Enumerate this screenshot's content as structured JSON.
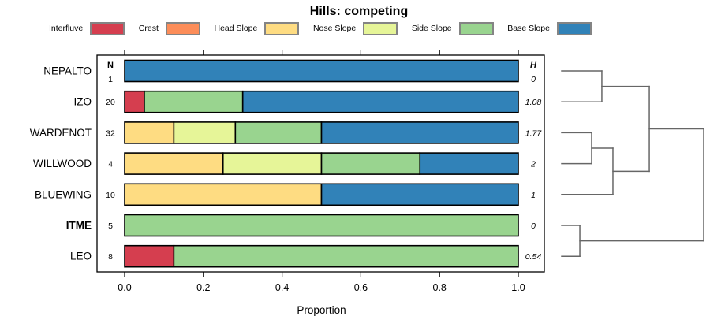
{
  "title": "Hills: competing",
  "legend": {
    "items": [
      {
        "label": "Interfluve",
        "color": "#d53e4f"
      },
      {
        "label": "Crest",
        "color": "#fc8d59"
      },
      {
        "label": "Head Slope",
        "color": "#fedc82"
      },
      {
        "label": "Nose Slope",
        "color": "#e6f598"
      },
      {
        "label": "Side Slope",
        "color": "#99d48f"
      },
      {
        "label": "Base Slope",
        "color": "#3182b8"
      }
    ]
  },
  "chart_data": {
    "type": "bar",
    "orientation": "horizontal-stacked",
    "title": "Hills: competing",
    "xlabel": "Proportion",
    "xlim": [
      0,
      1
    ],
    "xticks": [
      0,
      0.2,
      0.4,
      0.6,
      0.8,
      1.0
    ],
    "xtick_labels": [
      "0.0",
      "0.2",
      "0.4",
      "0.6",
      "0.8",
      "1.0"
    ],
    "n_header": "N",
    "h_header": "H",
    "categories": [
      "Interfluve",
      "Crest",
      "Head Slope",
      "Nose Slope",
      "Side Slope",
      "Base Slope"
    ],
    "rows": [
      {
        "label": "NEPALTO",
        "bold": false,
        "n": "1",
        "h": "0",
        "segments": [
          {
            "category": "Base Slope",
            "value": 1.0
          }
        ]
      },
      {
        "label": "IZO",
        "bold": false,
        "n": "20",
        "h": "1.08",
        "segments": [
          {
            "category": "Interfluve",
            "value": 0.05
          },
          {
            "category": "Side Slope",
            "value": 0.25
          },
          {
            "category": "Base Slope",
            "value": 0.7
          }
        ]
      },
      {
        "label": "WARDENOT",
        "bold": false,
        "n": "32",
        "h": "1.77",
        "segments": [
          {
            "category": "Head Slope",
            "value": 0.125
          },
          {
            "category": "Nose Slope",
            "value": 0.15625
          },
          {
            "category": "Side Slope",
            "value": 0.21875
          },
          {
            "category": "Base Slope",
            "value": 0.5
          }
        ]
      },
      {
        "label": "WILLWOOD",
        "bold": false,
        "n": "4",
        "h": "2",
        "segments": [
          {
            "category": "Head Slope",
            "value": 0.25
          },
          {
            "category": "Nose Slope",
            "value": 0.25
          },
          {
            "category": "Side Slope",
            "value": 0.25
          },
          {
            "category": "Base Slope",
            "value": 0.25
          }
        ]
      },
      {
        "label": "BLUEWING",
        "bold": false,
        "n": "10",
        "h": "1",
        "segments": [
          {
            "category": "Head Slope",
            "value": 0.5
          },
          {
            "category": "Base Slope",
            "value": 0.5
          }
        ]
      },
      {
        "label": "ITME",
        "bold": true,
        "n": "5",
        "h": "0",
        "segments": [
          {
            "category": "Side Slope",
            "value": 1.0
          }
        ]
      },
      {
        "label": "LEO",
        "bold": false,
        "n": "8",
        "h": "0.54",
        "segments": [
          {
            "category": "Interfluve",
            "value": 0.125
          },
          {
            "category": "Side Slope",
            "value": 0.875
          }
        ]
      }
    ],
    "dendrogram": {
      "tree": {
        "height": 1,
        "children": [
          {
            "height": 0.617,
            "children": [
              {
                "height": 0.283,
                "children": [
                  {
                    "leaf": 0
                  },
                  {
                    "leaf": 1
                  }
                ]
              },
              {
                "height": 0.361,
                "children": [
                  {
                    "height": 0.211,
                    "children": [
                      {
                        "leaf": 2
                      },
                      {
                        "leaf": 3
                      }
                    ]
                  },
                  {
                    "leaf": 4
                  }
                ]
              }
            ]
          },
          {
            "height": 0.128,
            "children": [
              {
                "leaf": 5
              },
              {
                "leaf": 6
              }
            ]
          }
        ]
      }
    }
  }
}
